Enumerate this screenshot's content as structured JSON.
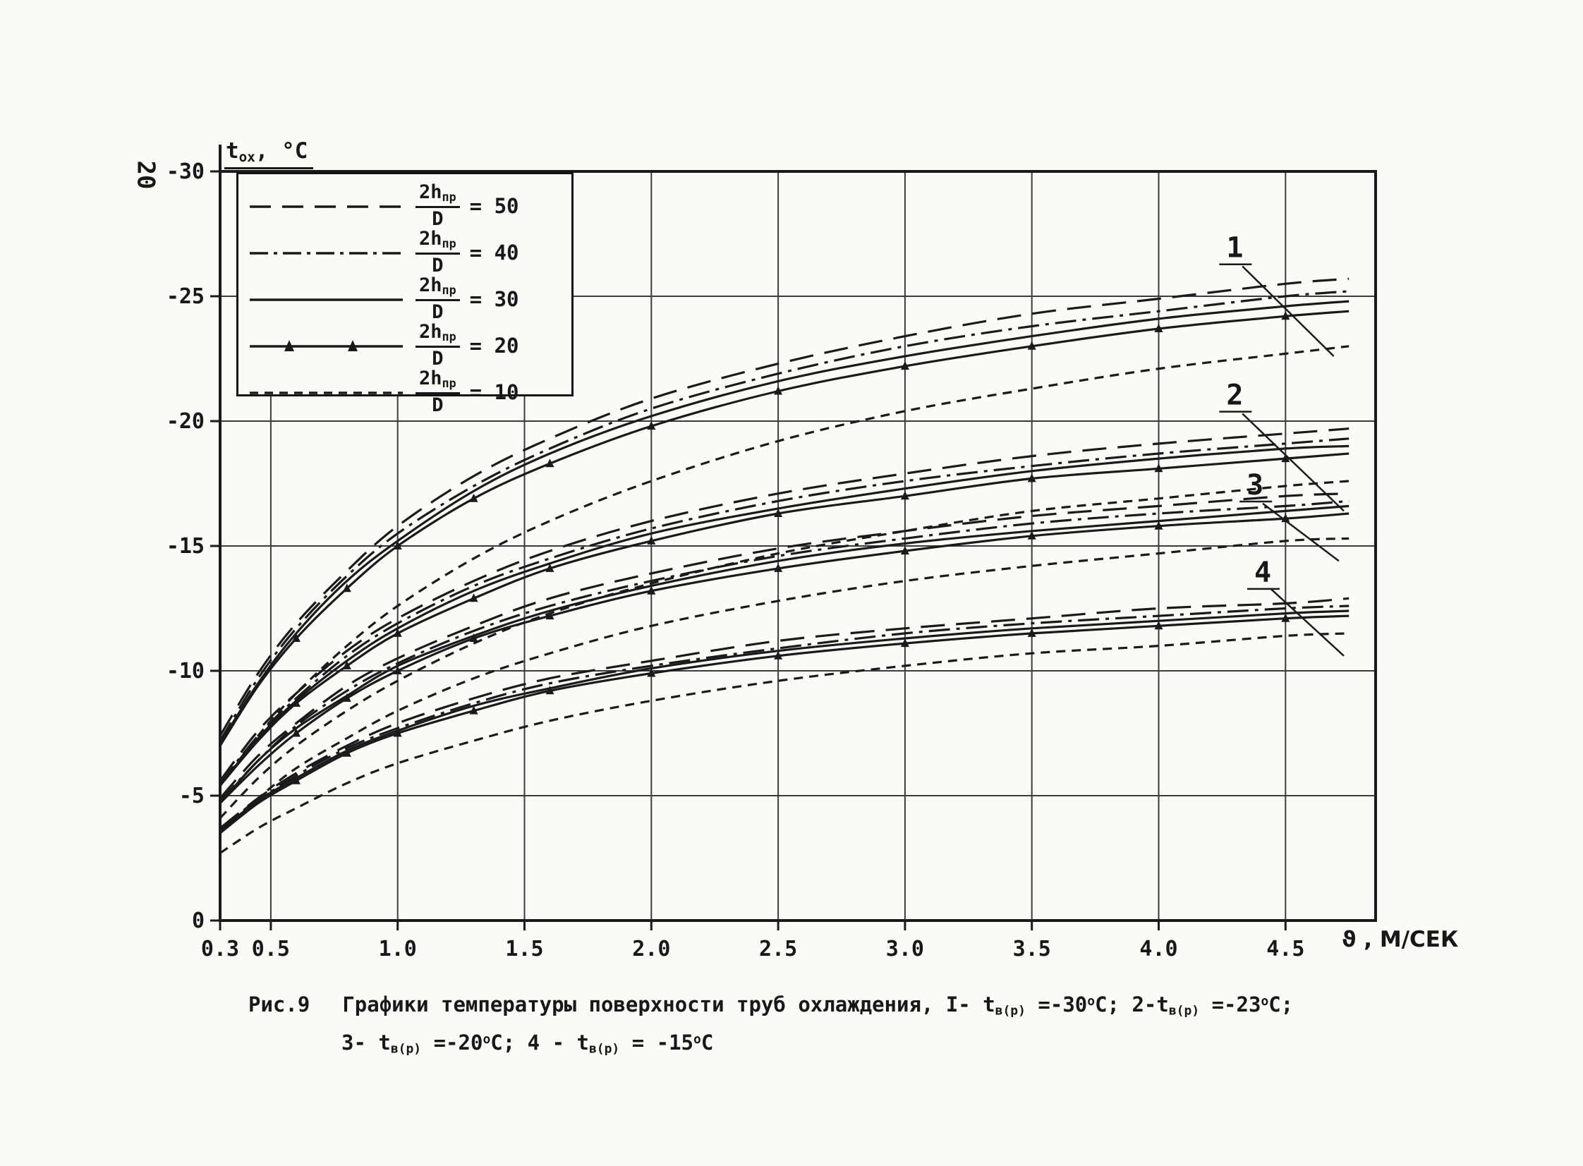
{
  "page": {
    "margin_number": "20"
  },
  "chart_data": {
    "type": "line",
    "title": "",
    "xlabel": "ϑ , М/СЕК",
    "ylabel": "t~ох~, °С",
    "xlim": [
      0.3,
      4.855
    ],
    "ylim": [
      0,
      -30
    ],
    "grid": true,
    "legend_position": "top-left",
    "x_grid": [
      0.5,
      1.0,
      1.5,
      2.0,
      2.5,
      3.0,
      3.5,
      4.0,
      4.5
    ],
    "y_grid": [
      -5,
      -10,
      -15,
      -20,
      -25
    ],
    "x_ticks": [
      {
        "v": 0.3,
        "label": "0.3"
      },
      {
        "v": 0.5,
        "label": "0.5"
      },
      {
        "v": 1.0,
        "label": "1.0"
      },
      {
        "v": 1.5,
        "label": "1.5"
      },
      {
        "v": 2.0,
        "label": "2.0"
      },
      {
        "v": 2.5,
        "label": "2.5"
      },
      {
        "v": 3.0,
        "label": "3.0"
      },
      {
        "v": 3.5,
        "label": "3.5"
      },
      {
        "v": 4.0,
        "label": "4.0"
      },
      {
        "v": 4.5,
        "label": "4.5"
      }
    ],
    "y_ticks": [
      {
        "v": -30,
        "label": "-30"
      },
      {
        "v": -25,
        "label": "-25"
      },
      {
        "v": -20,
        "label": "-20"
      },
      {
        "v": -15,
        "label": "-15"
      },
      {
        "v": -10,
        "label": "-10"
      },
      {
        "v": -5,
        "label": "-5"
      },
      {
        "v": 0,
        "label": "0"
      }
    ],
    "x": [
      0.3,
      0.45,
      0.6,
      0.8,
      1.0,
      1.3,
      1.6,
      2.0,
      2.5,
      3.0,
      3.5,
      4.0,
      4.5,
      4.75
    ],
    "series": [
      {
        "group": 1,
        "t_air_c": -30,
        "ratio": 50,
        "style": "longdash",
        "values": [
          -7.4,
          -9.9,
          -11.9,
          -14.0,
          -15.8,
          -17.8,
          -19.3,
          -20.9,
          -22.3,
          -23.4,
          -24.3,
          -24.9,
          -25.5,
          -25.7
        ]
      },
      {
        "group": 1,
        "t_air_c": -30,
        "ratio": 40,
        "style": "dashdot",
        "values": [
          -7.2,
          -9.7,
          -11.7,
          -13.8,
          -15.5,
          -17.4,
          -18.9,
          -20.5,
          -21.9,
          -23.0,
          -23.8,
          -24.4,
          -25.0,
          -25.2
        ]
      },
      {
        "group": 1,
        "t_air_c": -30,
        "ratio": 30,
        "style": "solid",
        "values": [
          -7.1,
          -9.5,
          -11.5,
          -13.6,
          -15.2,
          -17.2,
          -18.7,
          -20.2,
          -21.6,
          -22.6,
          -23.4,
          -24.1,
          -24.6,
          -24.8
        ]
      },
      {
        "group": 1,
        "t_air_c": -30,
        "ratio": 20,
        "style": "solid-tri",
        "values": [
          -7.0,
          -9.4,
          -11.3,
          -13.3,
          -15.0,
          -16.9,
          -18.3,
          -19.8,
          -21.2,
          -22.2,
          -23.0,
          -23.7,
          -24.2,
          -24.4
        ]
      },
      {
        "group": 1,
        "t_air_c": -30,
        "ratio": 10,
        "style": "shortdash",
        "values": [
          -5.4,
          -7.4,
          -9.1,
          -11.0,
          -12.6,
          -14.5,
          -16.0,
          -17.6,
          -19.2,
          -20.4,
          -21.3,
          -22.1,
          -22.7,
          -23.0
        ]
      },
      {
        "group": 2,
        "t_air_c": -23,
        "ratio": 50,
        "style": "longdash",
        "values": [
          -5.6,
          -7.6,
          -9.1,
          -10.8,
          -12.1,
          -13.6,
          -14.8,
          -16.0,
          -17.1,
          -17.9,
          -18.6,
          -19.1,
          -19.5,
          -19.7
        ]
      },
      {
        "group": 2,
        "t_air_c": -23,
        "ratio": 40,
        "style": "dashdot",
        "values": [
          -5.5,
          -7.4,
          -8.9,
          -10.6,
          -11.9,
          -13.4,
          -14.5,
          -15.7,
          -16.8,
          -17.6,
          -18.2,
          -18.7,
          -19.1,
          -19.3
        ]
      },
      {
        "group": 2,
        "t_air_c": -23,
        "ratio": 30,
        "style": "solid",
        "values": [
          -5.4,
          -7.3,
          -8.8,
          -10.4,
          -11.7,
          -13.2,
          -14.3,
          -15.5,
          -16.5,
          -17.3,
          -18.0,
          -18.5,
          -18.9,
          -19.0
        ]
      },
      {
        "group": 2,
        "t_air_c": -23,
        "ratio": 20,
        "style": "solid-tri",
        "values": [
          -5.4,
          -7.2,
          -8.7,
          -10.2,
          -11.5,
          -12.9,
          -14.1,
          -15.2,
          -16.3,
          -17.0,
          -17.7,
          -18.1,
          -18.5,
          -18.7
        ]
      },
      {
        "group": 2,
        "t_air_c": -23,
        "ratio": 10,
        "style": "shortdash",
        "values": [
          -4.1,
          -5.7,
          -7.0,
          -8.4,
          -9.6,
          -11.1,
          -12.3,
          -13.5,
          -14.7,
          -15.6,
          -16.4,
          -16.9,
          -17.4,
          -17.6
        ]
      },
      {
        "group": 3,
        "t_air_c": -20,
        "ratio": 50,
        "style": "longdash",
        "values": [
          -4.9,
          -6.6,
          -7.9,
          -9.4,
          -10.5,
          -11.8,
          -12.9,
          -13.9,
          -14.9,
          -15.6,
          -16.2,
          -16.6,
          -17.0,
          -17.1
        ]
      },
      {
        "group": 3,
        "t_air_c": -20,
        "ratio": 40,
        "style": "dashdot",
        "values": [
          -4.8,
          -6.4,
          -7.8,
          -9.2,
          -10.3,
          -11.6,
          -12.6,
          -13.6,
          -14.6,
          -15.3,
          -15.9,
          -16.3,
          -16.6,
          -16.8
        ]
      },
      {
        "group": 3,
        "t_air_c": -20,
        "ratio": 30,
        "style": "solid",
        "values": [
          -4.7,
          -6.4,
          -7.7,
          -9.0,
          -10.2,
          -11.4,
          -12.4,
          -13.4,
          -14.4,
          -15.1,
          -15.6,
          -16.0,
          -16.4,
          -16.6
        ]
      },
      {
        "group": 3,
        "t_air_c": -20,
        "ratio": 20,
        "style": "solid-tri",
        "values": [
          -4.7,
          -6.2,
          -7.5,
          -8.9,
          -10.0,
          -11.3,
          -12.2,
          -13.2,
          -14.1,
          -14.8,
          -15.4,
          -15.8,
          -16.1,
          -16.3
        ]
      },
      {
        "group": 3,
        "t_air_c": -20,
        "ratio": 10,
        "style": "shortdash",
        "values": [
          -3.6,
          -4.9,
          -6.1,
          -7.3,
          -8.4,
          -9.7,
          -10.7,
          -11.8,
          -12.8,
          -13.6,
          -14.2,
          -14.7,
          -15.2,
          -15.3
        ]
      },
      {
        "group": 4,
        "t_air_c": -15,
        "ratio": 50,
        "style": "longdash",
        "values": [
          -3.7,
          -4.9,
          -5.9,
          -7.0,
          -7.9,
          -8.9,
          -9.7,
          -10.4,
          -11.2,
          -11.7,
          -12.1,
          -12.5,
          -12.7,
          -12.9
        ]
      },
      {
        "group": 4,
        "t_air_c": -15,
        "ratio": 40,
        "style": "dashdot",
        "values": [
          -3.6,
          -4.8,
          -5.8,
          -6.9,
          -7.7,
          -8.7,
          -9.5,
          -10.2,
          -10.9,
          -11.5,
          -11.9,
          -12.2,
          -12.5,
          -12.6
        ]
      },
      {
        "group": 4,
        "t_air_c": -15,
        "ratio": 30,
        "style": "solid",
        "values": [
          -3.6,
          -4.8,
          -5.7,
          -6.8,
          -7.6,
          -8.6,
          -9.3,
          -10.1,
          -10.8,
          -11.3,
          -11.7,
          -12.0,
          -12.3,
          -12.4
        ]
      },
      {
        "group": 4,
        "t_air_c": -15,
        "ratio": 20,
        "style": "solid-tri",
        "values": [
          -3.5,
          -4.7,
          -5.6,
          -6.7,
          -7.5,
          -8.4,
          -9.2,
          -9.9,
          -10.6,
          -11.1,
          -11.5,
          -11.8,
          -12.1,
          -12.2
        ]
      },
      {
        "group": 4,
        "t_air_c": -15,
        "ratio": 10,
        "style": "shortdash",
        "values": [
          -2.7,
          -3.7,
          -4.5,
          -5.5,
          -6.3,
          -7.2,
          -8.0,
          -8.8,
          -9.6,
          -10.2,
          -10.7,
          -11.0,
          -11.4,
          -11.5
        ]
      }
    ],
    "annotations": [
      {
        "label": "1",
        "label_x": 4.3,
        "label_y": -26.9,
        "x1": 4.33,
        "y1": -26.2,
        "x2": 4.69,
        "y2": -22.6
      },
      {
        "label": "2",
        "label_x": 4.3,
        "label_y": -21.0,
        "x1": 4.33,
        "y1": -20.3,
        "x2": 4.73,
        "y2": -16.4
      },
      {
        "label": "3",
        "label_x": 4.38,
        "label_y": -17.4,
        "x1": 4.41,
        "y1": -16.7,
        "x2": 4.71,
        "y2": -14.4
      },
      {
        "label": "4",
        "label_x": 4.41,
        "label_y": -13.9,
        "x1": 4.44,
        "y1": -13.3,
        "x2": 4.73,
        "y2": -10.6
      }
    ]
  },
  "legend": {
    "items": [
      {
        "style": "longdash",
        "num": "2h~пр~",
        "den": "D",
        "value": "= 50"
      },
      {
        "style": "dashdot",
        "num": "2h~пр~",
        "den": "D",
        "value": "= 40"
      },
      {
        "style": "solid",
        "num": "2h~пр~",
        "den": "D",
        "value": "= 30"
      },
      {
        "style": "solid-tri",
        "num": "2h~пр~",
        "den": "D",
        "value": "= 20"
      },
      {
        "style": "shortdash",
        "num": "2h~пр~",
        "den": "D",
        "value": "= 10"
      }
    ]
  },
  "caption": {
    "fig_label": "Рис.9",
    "line1": "Графики температуры поверхности труб охлаждения, I- t~в(р)~ =-30^о^С; 2-t~в(р)~ =-23^о^С;",
    "line2": "3- t~в(р)~ =-20^о^С;   4 - t~в(р)~ = -15^о^С"
  }
}
